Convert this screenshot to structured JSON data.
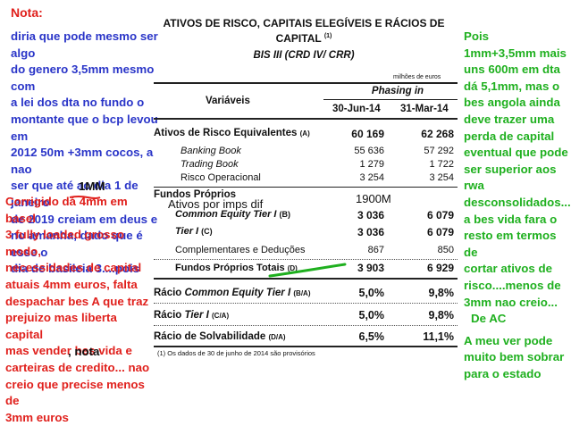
{
  "left_notes": {
    "nota_label": "Nota:",
    "blue_lines": [
      "diria que pode mesmo ser algo",
      "do genero 3,5mm mesmo com",
      "a lei dos dta no fundo o",
      "montante que o bcp levou em",
      "2012 50m +3mm cocos, a nao",
      "ser que até ao dia 1 de janeiro",
      "de 2019 creiam em deus  e",
      "no amanha, dado que é esse o",
      "dia de basileia 3....pois"
    ],
    "mm1": "1MM",
    "red_lines": [
      "Corrigido dá 4mm em basel",
      "3 fully loaded grosso modo,",
      "necessidades de capital",
      "atuais 4mm euros, falta",
      "despachar bes A que traz",
      "prejuizo mas liberta capital",
      "mas vender bes vida e",
      "carteiras de credito... nao",
      "creio que precise menos de",
      "3mm euros"
    ],
    "nota_suffix": ", nota"
  },
  "right_notes": {
    "lines": [
      "Pois",
      "1mm+3,5mm mais",
      "uns 600m em dta",
      "dá 5,1mm, mas o",
      "bes angola ainda",
      "deve trazer uma",
      "perda de capital",
      "eventual que pode",
      "ser superior aos",
      "rwa",
      "desconsolidados...",
      "a bes vida fara o",
      "resto em termos de",
      "cortar ativos de",
      "risco....menos de",
      "3mm nao creio...",
      "De AC",
      "",
      "A meu ver pode",
      "muito bem sobrar",
      "para o estado"
    ]
  },
  "table": {
    "title_line1": "ATIVOS DE RISCO, CAPITAIS ELEGÍVEIS E RÁCIOS DE",
    "title_line2": "CAPITAL",
    "title_sup": "(1)",
    "subtitle": "BIS III (CRD IV/ CRR)",
    "units": "milhões de euros",
    "col_group": "Phasing in",
    "col_variaveis": "Variáveis",
    "col1": "30-Jun-14",
    "col2": "31-Mar-14",
    "rows": {
      "aer_label": "Ativos de Risco Equivalentes",
      "aer_tag": "(A)",
      "aer_v1": "60 169",
      "aer_v2": "62 268",
      "banking_label": "Banking Book",
      "banking_v1": "55 636",
      "banking_v2": "57 292",
      "trading_label": "Trading Book",
      "trading_v1": "1 279",
      "trading_v2": "1 722",
      "risco_label": "Risco Operacional",
      "risco_v1": "3 254",
      "risco_v2": "3 254",
      "fp_label": "Fundos Próprios",
      "overlay_ativos": "Ativos por imps dif",
      "overlay_1900": "1900M",
      "cet1_label": "Common Equity Tier I",
      "cet1_tag": "(B)",
      "cet1_v1": "3 036",
      "cet1_v2": "6 079",
      "t1_label": "Tier I",
      "t1_tag": "(C)",
      "t1_v1": "3 036",
      "t1_v2": "6 079",
      "comp_label": "Complementares e Deduções",
      "comp_v1": "867",
      "comp_v2": "850",
      "fpt_label": "Fundos Próprios Totais",
      "fpt_tag": "(D)",
      "fpt_v1": "3 903",
      "fpt_v2": "6 929",
      "r1_label_a": "Rácio",
      "r1_label_b": "Common Equity Tier I",
      "r1_tag": "(B/A)",
      "r1_v1": "5,0%",
      "r1_v2": "9,8%",
      "r2_label_a": "Rácio",
      "r2_label_b": "Tier I",
      "r2_tag": "(C/A)",
      "r2_v1": "5,0%",
      "r2_v2": "9,8%",
      "r3_label": "Rácio de Solvabilidade",
      "r3_tag": "(D/A)",
      "r3_v1": "6,5%",
      "r3_v2": "11,1%"
    },
    "footnote": "(1) Os dados de 30 de junho de 2014 são provisórios"
  },
  "colors": {
    "red": "#e0201c",
    "blue": "#2a35c8",
    "green": "#1fb01f"
  }
}
